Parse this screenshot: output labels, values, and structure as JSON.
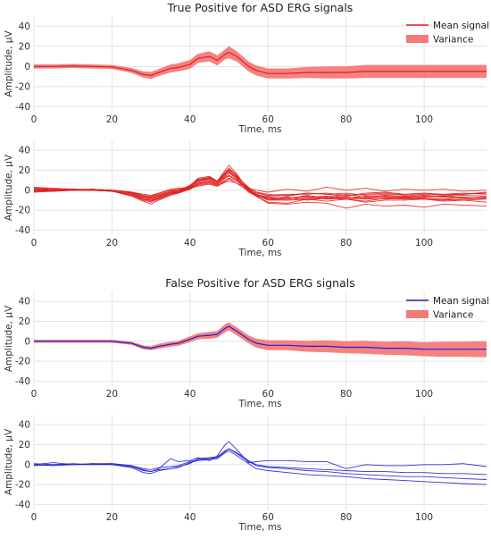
{
  "chart_data": [
    {
      "type": "area",
      "title": "True Positive for ASD ERG signals",
      "xlabel": "Time, ms",
      "ylabel": "Amplitude, μV",
      "xlim": [
        0,
        116
      ],
      "ylim": [
        -45,
        50
      ],
      "xticks": [
        0,
        20,
        40,
        60,
        80,
        100
      ],
      "yticks": [
        -40,
        -20,
        0,
        20,
        40
      ],
      "grid": true,
      "legend": "top-right",
      "legend_entries": [
        "Mean signal",
        "Variance"
      ],
      "colors": {
        "line": "#e02020",
        "band": "#f47a7a"
      },
      "mean": {
        "x": [
          0,
          5,
          10,
          15,
          20,
          25,
          28,
          30,
          32,
          35,
          37,
          40,
          42,
          45,
          47,
          49,
          50,
          52,
          55,
          57,
          60,
          65,
          70,
          75,
          80,
          85,
          90,
          95,
          100,
          105,
          110,
          116
        ],
        "y": [
          0,
          0,
          0.5,
          0,
          -0.5,
          -4,
          -8,
          -9,
          -6,
          -2,
          -1,
          2,
          8,
          10,
          6,
          12,
          14,
          10,
          0,
          -4,
          -7,
          -7,
          -6,
          -6,
          -6,
          -5,
          -5,
          -5,
          -5,
          -5,
          -5,
          -5
        ]
      },
      "variance_halfwidth": [
        2,
        2,
        2,
        2,
        2,
        2.5,
        3,
        3.5,
        3.5,
        4,
        4,
        4.5,
        4.5,
        5,
        5,
        5,
        6,
        5,
        5,
        5,
        5,
        5,
        5.5,
        6,
        6,
        6.5,
        6.5,
        6.5,
        6.5,
        6.5,
        6.5,
        6.5
      ]
    },
    {
      "type": "line",
      "title": "",
      "xlabel": "Time, ms",
      "ylabel": "Amplitude, μV",
      "xlim": [
        0,
        116
      ],
      "ylim": [
        -45,
        50
      ],
      "xticks": [
        0,
        20,
        40,
        60,
        80,
        100
      ],
      "yticks": [
        -40,
        -20,
        0,
        20,
        40
      ],
      "grid": true,
      "colors": {
        "line": "#e02020"
      },
      "x": [
        0,
        5,
        10,
        15,
        20,
        25,
        28,
        30,
        32,
        35,
        37,
        40,
        42,
        45,
        47,
        49,
        50,
        52,
        55,
        57,
        60,
        65,
        70,
        75,
        80,
        85,
        90,
        95,
        100,
        105,
        110,
        116
      ],
      "series": [
        {
          "values": [
            2,
            1,
            0,
            0,
            -1,
            -5,
            -10,
            -12,
            -9,
            -4,
            -2,
            4,
            12,
            14,
            9,
            20,
            25,
            16,
            0,
            -6,
            -12,
            -13,
            -9,
            -11,
            -9,
            -12,
            -10,
            -10,
            -9,
            -11,
            -10,
            -12
          ]
        },
        {
          "values": [
            0,
            0,
            1,
            0,
            0,
            -3,
            -6,
            -7,
            -5,
            -1,
            0,
            1,
            5,
            7,
            4,
            9,
            11,
            7,
            -1,
            -3,
            -5,
            -4,
            -4,
            -3,
            -5,
            -4,
            -3,
            -5,
            -4,
            -4,
            -3,
            -4
          ]
        },
        {
          "values": [
            -2,
            -1,
            0,
            1,
            -1,
            -4,
            -9,
            -11,
            -8,
            -3,
            -2,
            3,
            9,
            12,
            8,
            16,
            20,
            14,
            2,
            -5,
            -10,
            -10,
            -9,
            -8,
            -9,
            -8,
            -9,
            -8,
            -9,
            -10,
            -9,
            -8
          ]
        },
        {
          "values": [
            3,
            2,
            1,
            0,
            0,
            -2,
            -5,
            -6,
            -3,
            1,
            2,
            3,
            6,
            8,
            5,
            10,
            12,
            9,
            1,
            -2,
            -4,
            -6,
            -3,
            -4,
            -6,
            -3,
            -2,
            -4,
            -3,
            -5,
            -4,
            -3
          ]
        },
        {
          "values": [
            0,
            -1,
            0,
            0,
            -1,
            -6,
            -11,
            -14,
            -10,
            -5,
            -3,
            2,
            10,
            13,
            9,
            18,
            22,
            15,
            1,
            -6,
            -13,
            -14,
            -12,
            -13,
            -18,
            -14,
            -16,
            -15,
            -17,
            -14,
            -15,
            -16
          ]
        },
        {
          "values": [
            1,
            1,
            1,
            1,
            0,
            -3,
            -7,
            -8,
            -6,
            -2,
            -1,
            2,
            7,
            9,
            6,
            13,
            15,
            11,
            0,
            -4,
            -7,
            -8,
            -7,
            -6,
            -7,
            -8,
            -6,
            -7,
            -6,
            -7,
            -8,
            -7
          ]
        },
        {
          "values": [
            -1,
            0,
            0,
            0,
            -1,
            -4,
            -8,
            -9,
            -7,
            -3,
            -1,
            5,
            11,
            13,
            9,
            17,
            19,
            12,
            -2,
            -6,
            -8,
            -9,
            -5,
            -8,
            -4,
            -7,
            -5,
            -6,
            -5,
            -6,
            -5,
            -6
          ]
        },
        {
          "values": [
            2,
            1,
            0,
            1,
            0,
            -2,
            -4,
            -5,
            -3,
            0,
            1,
            2,
            4,
            6,
            4,
            8,
            9,
            7,
            2,
            0,
            -2,
            1,
            -1,
            3,
            0,
            2,
            -1,
            1,
            0,
            1,
            -1,
            0
          ]
        },
        {
          "values": [
            0,
            0,
            0,
            0,
            -1,
            -5,
            -9,
            -10,
            -8,
            -4,
            -3,
            1,
            8,
            10,
            7,
            14,
            17,
            12,
            0,
            -5,
            -9,
            -10,
            -8,
            -7,
            -9,
            -11,
            -8,
            -9,
            -8,
            -9,
            -10,
            -9
          ]
        },
        {
          "values": [
            1,
            0,
            1,
            0,
            0,
            -3,
            -6,
            -7,
            -4,
            -1,
            0,
            3,
            9,
            11,
            8,
            15,
            18,
            13,
            3,
            -2,
            -6,
            -5,
            -3,
            -4,
            -3,
            -5,
            -4,
            -4,
            -3,
            -4,
            -4,
            -2
          ]
        },
        {
          "values": [
            -1,
            -1,
            0,
            0,
            -1,
            -4,
            -8,
            -10,
            -7,
            -3,
            -2,
            1,
            6,
            9,
            6,
            12,
            14,
            10,
            -1,
            -5,
            -9,
            -8,
            -6,
            -9,
            -8,
            -6,
            -7,
            -8,
            -7,
            -6,
            -7,
            -8
          ]
        },
        {
          "values": [
            2,
            1,
            1,
            0,
            0,
            -2,
            -6,
            -8,
            -5,
            -2,
            0,
            4,
            10,
            12,
            9,
            17,
            21,
            14,
            1,
            -4,
            -8,
            -7,
            -10,
            -8,
            -7,
            -9,
            -8,
            -7,
            -8,
            -9,
            -7,
            -8
          ]
        }
      ]
    },
    {
      "type": "area",
      "title": "False Positive for ASD ERG signals",
      "xlabel": "Time, ms",
      "ylabel": "Amplitude, μV",
      "xlim": [
        0,
        116
      ],
      "ylim": [
        -45,
        50
      ],
      "xticks": [
        0,
        20,
        40,
        60,
        80,
        100
      ],
      "yticks": [
        -40,
        -20,
        0,
        20,
        40
      ],
      "grid": true,
      "legend": "top-right",
      "legend_entries": [
        "Mean signal",
        "Variance"
      ],
      "colors": {
        "line": "#2020d0",
        "band": "#f47a7a"
      },
      "mean": {
        "x": [
          0,
          5,
          10,
          15,
          20,
          25,
          28,
          30,
          32,
          35,
          37,
          40,
          42,
          45,
          47,
          49,
          50,
          52,
          55,
          57,
          60,
          65,
          70,
          75,
          80,
          85,
          90,
          95,
          100,
          105,
          110,
          116
        ],
        "y": [
          0,
          0,
          0,
          0,
          0,
          -2,
          -6,
          -7,
          -5,
          -3,
          -2,
          2,
          5,
          6,
          7,
          13,
          15,
          10,
          2,
          -2,
          -4,
          -4,
          -5,
          -5,
          -6,
          -6,
          -7,
          -7,
          -8,
          -8,
          -8,
          -8
        ]
      },
      "variance_halfwidth": [
        1.5,
        1.5,
        1.5,
        1.5,
        1.5,
        1.5,
        2,
        2,
        2.5,
        2.5,
        2.5,
        3,
        3,
        3.5,
        3.5,
        4,
        4,
        4,
        4,
        4.5,
        5,
        5,
        5.5,
        6,
        6,
        6.5,
        6.5,
        7,
        7,
        7.5,
        7.5,
        8
      ]
    },
    {
      "type": "line",
      "title": "",
      "xlabel": "Time, ms",
      "ylabel": "Amplitude, μV",
      "xlim": [
        0,
        116
      ],
      "ylim": [
        -45,
        50
      ],
      "xticks": [
        0,
        20,
        40,
        60,
        80,
        100
      ],
      "yticks": [
        -40,
        -20,
        0,
        20,
        40
      ],
      "grid": true,
      "colors": {
        "line": "#2020d0"
      },
      "x": [
        0,
        5,
        10,
        15,
        20,
        25,
        28,
        30,
        32,
        35,
        37,
        40,
        42,
        45,
        47,
        49,
        50,
        52,
        55,
        57,
        60,
        65,
        70,
        75,
        80,
        85,
        90,
        95,
        100,
        105,
        110,
        116
      ],
      "series": [
        {
          "values": [
            0,
            2,
            0,
            1,
            1,
            -1,
            -5,
            -7,
            -4,
            6,
            3,
            4,
            7,
            4,
            9,
            20,
            23,
            15,
            2,
            3,
            4,
            4,
            3,
            3,
            -4,
            0,
            -1,
            -1,
            0,
            0,
            1,
            -2
          ]
        },
        {
          "values": [
            1,
            0,
            1,
            0,
            0,
            -3,
            -8,
            -9,
            -6,
            -4,
            -3,
            2,
            4,
            5,
            6,
            12,
            14,
            9,
            1,
            -4,
            -6,
            -8,
            -10,
            -11,
            -12,
            -14,
            -15,
            -16,
            -17,
            -18,
            -19,
            -20
          ]
        },
        {
          "values": [
            -1,
            0,
            0,
            1,
            0,
            -2,
            -6,
            -7,
            -5,
            -4,
            -2,
            1,
            6,
            7,
            8,
            14,
            16,
            11,
            3,
            -1,
            -3,
            -4,
            -6,
            -7,
            -9,
            -10,
            -11,
            -12,
            -12,
            -13,
            -14,
            -15
          ]
        },
        {
          "values": [
            0,
            -1,
            0,
            0,
            1,
            -1,
            -4,
            -5,
            -3,
            -2,
            -1,
            3,
            5,
            6,
            7,
            13,
            16,
            12,
            4,
            0,
            -2,
            -3,
            -4,
            -5,
            -6,
            -7,
            -7,
            -8,
            -8,
            -9,
            -9,
            -10
          ]
        }
      ]
    }
  ]
}
